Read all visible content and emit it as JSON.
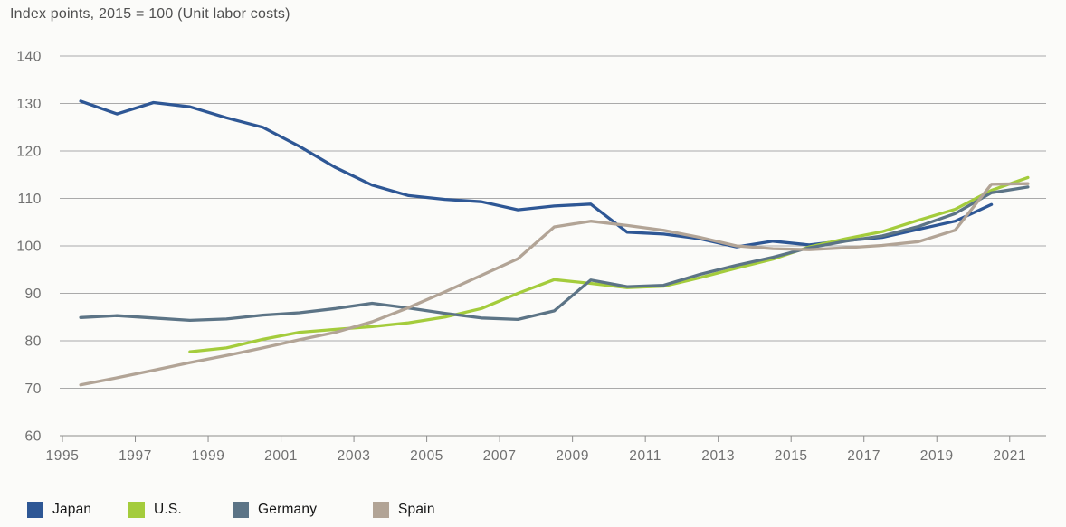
{
  "chart_data": {
    "type": "line",
    "title": "Index points, 2015 = 100 (Unit labor costs)",
    "xlabel": "",
    "ylabel": "Index points",
    "ylim": [
      60,
      140
    ],
    "xlim": [
      1995,
      2022
    ],
    "grid": "horizontal",
    "legend_position": "bottom-left",
    "y_axis": {
      "ticks": [
        140,
        130,
        120,
        110,
        100,
        90,
        80,
        70,
        60
      ]
    },
    "x_axis": {
      "ticks": [
        1995,
        1997,
        1999,
        2001,
        2003,
        2005,
        2007,
        2009,
        2011,
        2013,
        2015,
        2017,
        2019,
        2021
      ]
    },
    "series": [
      {
        "name": "Japan",
        "color": "#2e5795",
        "start_year": 1995,
        "end_year": 2020,
        "values": [
          130.5,
          127.8,
          130.2,
          129.3,
          127.0,
          125.0,
          121.0,
          116.5,
          112.8,
          110.6,
          109.8,
          109.3,
          107.6,
          108.4,
          108.8,
          102.9,
          102.5,
          101.5,
          99.8,
          101.0,
          100.2,
          101.1,
          101.8,
          103.5,
          105.2,
          108.7
        ]
      },
      {
        "name": "U.S.",
        "color": "#a4cc3c",
        "start_year": 1998,
        "end_year": 2021,
        "values": [
          77.7,
          78.5,
          80.3,
          81.8,
          82.4,
          83.0,
          83.8,
          85.0,
          86.8,
          90.0,
          92.9,
          92.1,
          91.2,
          91.5,
          93.3,
          95.3,
          97.2,
          99.8,
          101.5,
          103.0,
          105.4,
          107.7,
          111.7,
          114.4
        ]
      },
      {
        "name": "Germany",
        "color": "#5c7486",
        "start_year": 1995,
        "end_year": 2021,
        "values": [
          84.9,
          85.3,
          84.8,
          84.3,
          84.6,
          85.4,
          85.9,
          86.8,
          87.9,
          86.9,
          85.8,
          84.8,
          84.5,
          86.3,
          92.8,
          91.4,
          91.7,
          94.0,
          95.9,
          97.6,
          99.6,
          101.0,
          102.1,
          104.1,
          106.8,
          111.2,
          112.4
        ]
      },
      {
        "name": "Spain",
        "color": "#b2a496",
        "start_year": 1995,
        "end_year": 2021,
        "values": [
          70.7,
          72.2,
          73.8,
          75.4,
          76.9,
          78.5,
          80.2,
          81.8,
          84.0,
          87.0,
          90.3,
          93.8,
          97.3,
          104.0,
          105.2,
          104.3,
          103.3,
          101.8,
          100.0,
          99.4,
          99.2,
          99.6,
          100.1,
          100.9,
          103.3,
          113.0,
          113.1
        ]
      }
    ]
  }
}
